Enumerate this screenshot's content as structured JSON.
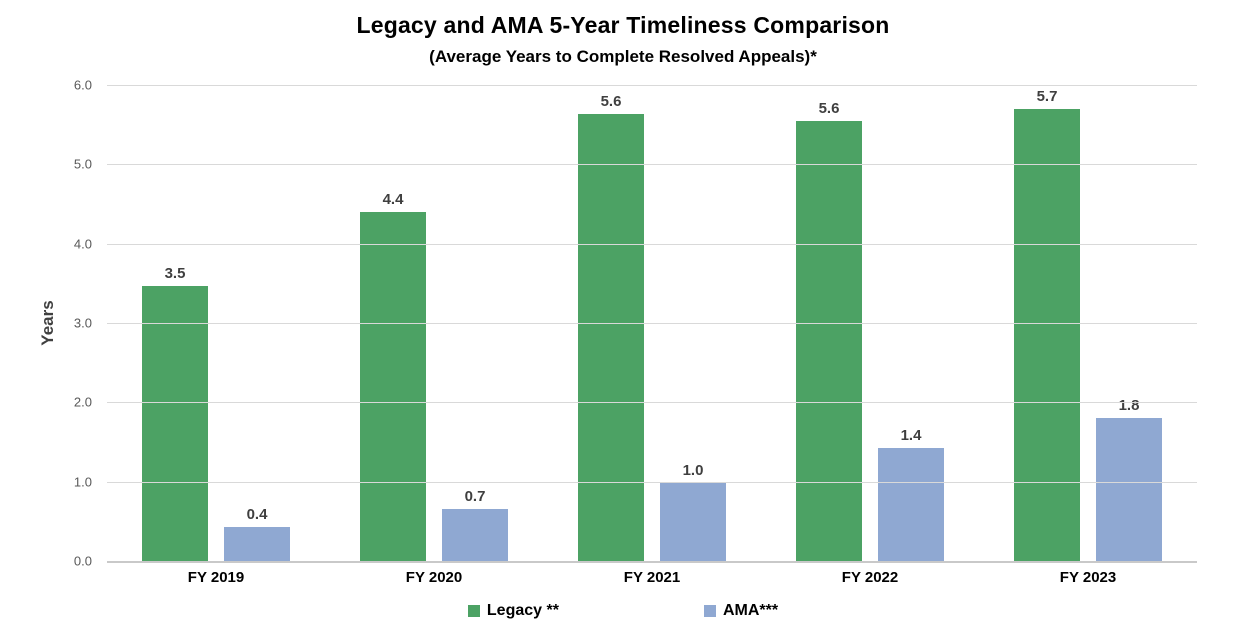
{
  "header": {
    "title": "Legacy and AMA 5-Year Timeliness Comparison",
    "subtitle": "(Average Years to Complete Resolved Appeals)*"
  },
  "colors": {
    "legacy_green": "#4CA264",
    "ama_blue": "#8FA8D2",
    "gridline": "#D9D9D9",
    "axis_line": "#C9C9C9",
    "tick_label": "#595959",
    "data_label": "#3F3F3F",
    "text": "#000000"
  },
  "chart_data": {
    "type": "bar",
    "title": "Legacy and AMA 5-Year Timeliness Comparison",
    "subtitle": "(Average Years to Complete Resolved Appeals)*",
    "xlabel": "",
    "ylabel": "Years",
    "ylim": [
      0,
      6
    ],
    "yticks": [
      "0.0",
      "1.0",
      "2.0",
      "3.0",
      "4.0",
      "5.0",
      "6.0"
    ],
    "grid": true,
    "legend_position": "bottom",
    "categories": [
      "FY 2019",
      "FY 2020",
      "FY 2021",
      "FY 2022",
      "FY 2023"
    ],
    "series": [
      {
        "name": "Legacy **",
        "color": "#4CA264",
        "values": [
          3.5,
          4.4,
          5.6,
          5.6,
          5.7
        ],
        "labels": [
          "3.5",
          "4.4",
          "5.6",
          "5.6",
          "5.7"
        ],
        "values_precise": [
          3.47,
          4.4,
          5.64,
          5.55,
          5.7
        ]
      },
      {
        "name": "AMA***",
        "color": "#8FA8D2",
        "values": [
          0.4,
          0.7,
          1.0,
          1.4,
          1.8
        ],
        "labels": [
          "0.4",
          "0.7",
          "1.0",
          "1.4",
          "1.8"
        ],
        "values_precise": [
          0.43,
          0.65,
          0.98,
          1.42,
          1.8
        ]
      }
    ]
  }
}
